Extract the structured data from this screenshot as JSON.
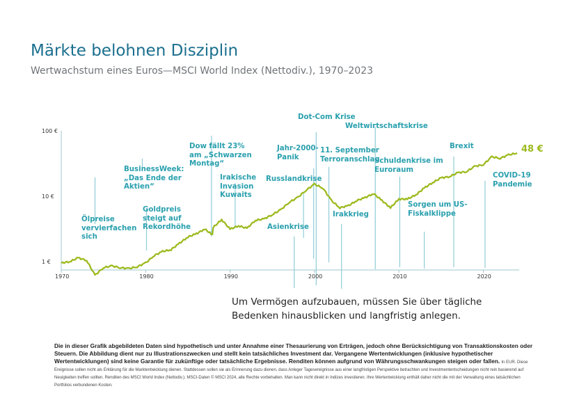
{
  "title": "Märkte belohnen Disziplin",
  "subtitle": "Wertwachstum eines Euros—MSCI World Index (Nettodiv.), 1970–2023",
  "chart_data": {
    "type": "line",
    "scale": "log",
    "ylim": [
      0.5,
      100
    ],
    "xlim": [
      1970,
      2024
    ],
    "yticks": [
      "1 €",
      "10 €",
      "100 €"
    ],
    "ytick_values": [
      1,
      10,
      100
    ],
    "xticks": [
      "1970",
      "1980",
      "1990",
      "2000",
      "2010",
      "2020"
    ],
    "xtick_values": [
      1970,
      1980,
      1990,
      2000,
      2010,
      2020
    ],
    "line_color": "#9cba1f",
    "event_color": "#2aa0ae",
    "end_label": "48 €",
    "x": [
      1970,
      1971,
      1972,
      1973,
      1974,
      1975,
      1976,
      1977,
      1978,
      1979,
      1980,
      1981,
      1982,
      1983,
      1984,
      1985,
      1986,
      1987,
      1987.9,
      1988,
      1989,
      1990,
      1991,
      1992,
      1993,
      1994,
      1995,
      1996,
      1997,
      1998,
      1999,
      2000,
      2001,
      2002,
      2003,
      2004,
      2005,
      2006,
      2007,
      2008,
      2009,
      2010,
      2011,
      2012,
      2013,
      2014,
      2015,
      2016,
      2017,
      2018,
      2019,
      2020,
      2021,
      2022,
      2023,
      2024
    ],
    "values": [
      1.0,
      1.05,
      1.2,
      1.1,
      0.65,
      0.85,
      0.9,
      0.85,
      0.82,
      0.88,
      1.0,
      1.3,
      1.5,
      1.6,
      2.0,
      2.5,
      2.8,
      3.3,
      2.7,
      3.5,
      4.6,
      3.3,
      3.7,
      3.4,
      4.5,
      4.7,
      5.5,
      6.5,
      8.5,
      10,
      13,
      16,
      14,
      9,
      7,
      7.5,
      9,
      10,
      11.5,
      9,
      7,
      9.5,
      9.5,
      11,
      14,
      17,
      20,
      21,
      24,
      25,
      30,
      32,
      42,
      40,
      45,
      48
    ],
    "events": [
      {
        "label": "Ölpreise vervierfachen sich",
        "year": 1974
      },
      {
        "label": "BusinessWeek: „Das Ende der Aktien“",
        "year": 1979.6
      },
      {
        "label": "Goldpreis steigt auf Rekordhöhe",
        "year": 1980.1
      },
      {
        "label": "Dow fällt 23% am „Schwarzen Montag“",
        "year": 1987.8
      },
      {
        "label": "Irakische Invasion Kuwaits",
        "year": 1990.6
      },
      {
        "label": "Asienkrise",
        "year": 1997.6
      },
      {
        "label": "Russlandkrise",
        "year": 1998.7
      },
      {
        "label": "Jahr-2000-Panik",
        "year": 1999.9
      },
      {
        "label": "Dot-Com Krise",
        "year": 2000.2
      },
      {
        "label": "11. September Terroranschlag",
        "year": 2001.7
      },
      {
        "label": "Irakkrieg",
        "year": 2003.2
      },
      {
        "label": "Weltwirtschaftskrise",
        "year": 2007.2
      },
      {
        "label": "Schuldenkrise im Euroraum",
        "year": 2010.1
      },
      {
        "label": "Sorgen um US-Fiskalklippe",
        "year": 2013
      },
      {
        "label": "Brexit",
        "year": 2016.5
      },
      {
        "label": "COVID-19 Pandemie",
        "year": 2020.2
      }
    ]
  },
  "quote": [
    "Um Vermögen aufzubauen, müssen Sie über tägliche",
    "Bedenken hinausblicken und langfristig anlegen."
  ],
  "disclaimer_bold": "Die in dieser Grafik abgebildeten Daten sind hypothetisch und unter Annahme einer Thesaurierung von Erträgen, jedoch ohne Berücksichtigung von Transaktionskosten oder Steuern. Die Abbildung dient nur zu Illustrationszwecken und stellt kein tatsächliches Investment dar. Vergangene Wertentwicklungen (inklusive hypothetischer Wertentwicklungen) sind keine Garantie für zukünftige oder tatsächliche Ergebnisse. Renditen können aufgrund von Währungsschwankungen steigen oder fallen.",
  "disclaimer_small": "In EUR. Diese Ereignisse sollen nicht als Erklärung für die Marktentwicklung dienen. Stattdessen sollen sie als Erinnerung dazu dienen, dass Anleger Tagesereignisse aus einer langfristigen Perspektive betrachten und Investmententscheidungen nicht rein basierend auf Neuigkeiten treffen sollten. Renditen des MSCI World Index (Nettodiv.). MSCI-Daten © MSCI 2024, alle Rechte vorbehalten. Man kann nicht direkt in Indizes investieren. Ihre Wertentwicklung enthält daher nicht die mit der Verwaltung eines tatsächlichen Portfolios verbundenen Kosten."
}
